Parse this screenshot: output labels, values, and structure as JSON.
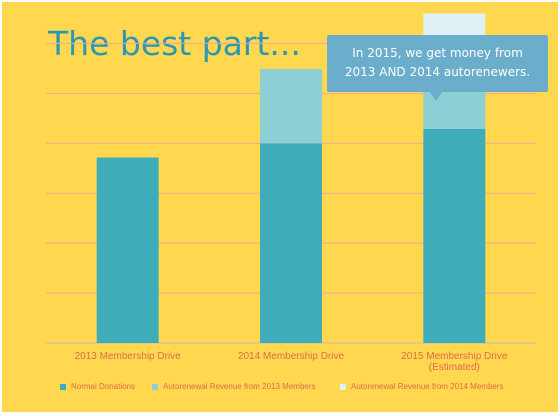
{
  "title": "The best part...",
  "callout": {
    "line1": "In 2015, we get money from",
    "line2": "2013 AND 2014 autorenewers."
  },
  "colors": {
    "background": "#ffd84f",
    "title": "#2b98b3",
    "callout": "#6aaecb",
    "label_text": "#e06b4a",
    "gridline": "#f2a79b",
    "axis": "#bdbdbd"
  },
  "chart_data": {
    "type": "bar",
    "stacked": true,
    "categories": [
      "2013 Membership Drive",
      "2014 Membership Drive",
      "2015 Membership Drive (Estimated)"
    ],
    "category_lines": [
      [
        "2013 Membership Drive"
      ],
      [
        "2014 Membership Drive"
      ],
      [
        "2015 Membership Drive",
        "(Estimated)"
      ]
    ],
    "series": [
      {
        "name": "Normal Donations",
        "color": "#3fadb9",
        "values": [
          130,
          140,
          150
        ]
      },
      {
        "name": "Autorenewal Revenue from 2013 Members",
        "color": "#8ecfd6",
        "values": [
          0,
          52,
          37
        ]
      },
      {
        "name": "Autorenewal Revenue from 2014 Members",
        "color": "#dff1f4",
        "values": [
          0,
          0,
          44
        ]
      }
    ],
    "ylim": [
      0,
      225
    ],
    "gridline_step": 35,
    "grid": true,
    "legend_position": "bottom"
  }
}
